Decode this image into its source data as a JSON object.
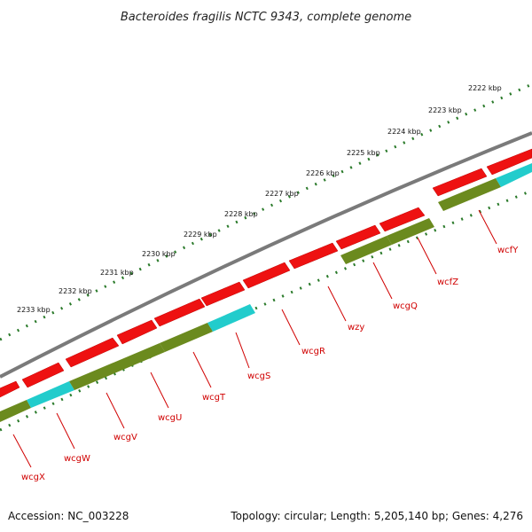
{
  "title": "Bacteroides fragilis NCTC 9343, complete genome",
  "accession_text": "Accession: NC_003228",
  "summary_text": "Topology: circular; Length: 5,205,140 bp; Genes: 4,276",
  "colors": {
    "backbone": "#7a7a7a",
    "gene_forward": "#ee1111",
    "gene_alt": "#6b8a1e",
    "gene_highlight": "#22cccc",
    "ruler": "#2a7a2a",
    "label": "#d00000"
  },
  "ruler": {
    "unit": "kbp",
    "ticks": [
      "2222 kbp",
      "2223 kbp",
      "2224 kbp",
      "2225 kbp",
      "2226 kbp",
      "2227 kbp",
      "2228 kbp",
      "2229 kbp",
      "2230 kbp",
      "2231 kbp",
      "2232 kbp",
      "2233 kbp"
    ]
  },
  "genes": [
    "wcfY",
    "wcfZ",
    "wcgQ",
    "wzy",
    "wcgR",
    "wcgS",
    "wcgT",
    "wcgU",
    "wcgV",
    "wcgW",
    "wcgX"
  ]
}
